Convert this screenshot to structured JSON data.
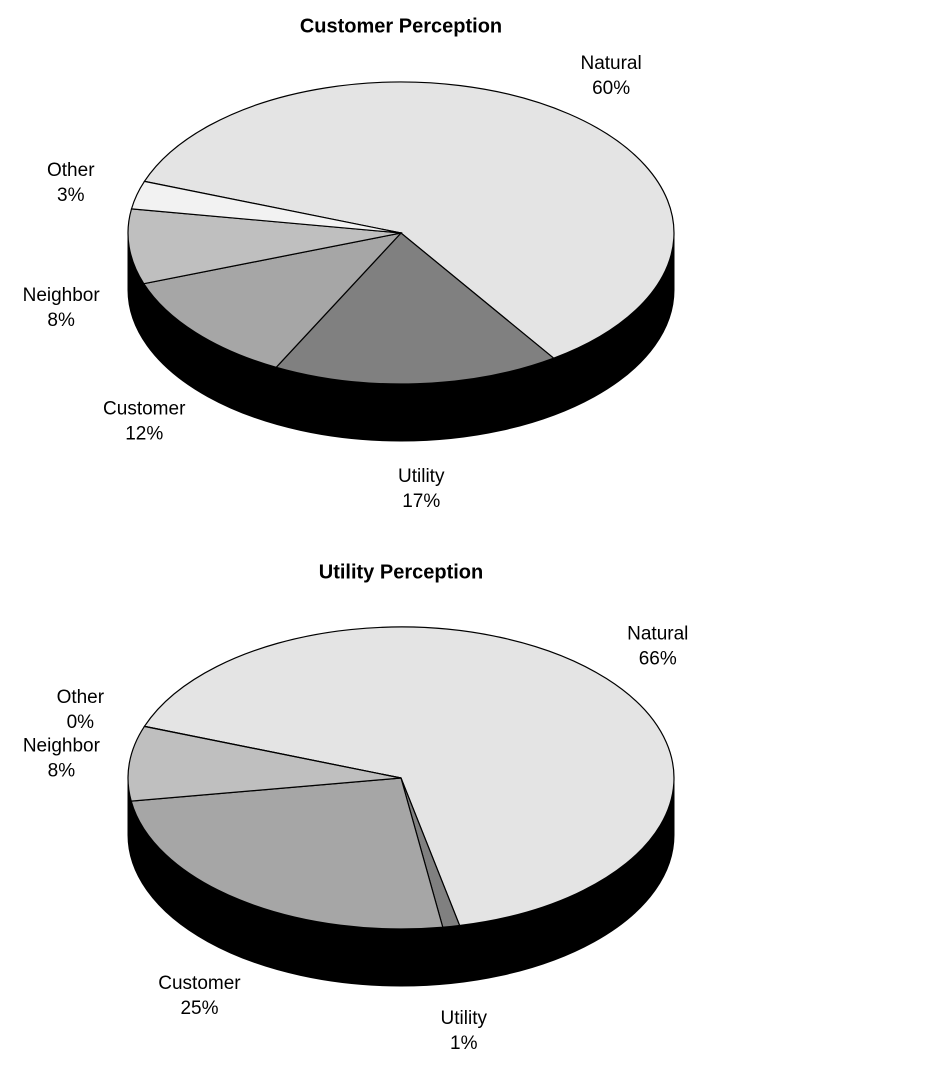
{
  "chart_data": [
    {
      "type": "pie",
      "title": "Customer Perception",
      "categories": [
        "Natural",
        "Utility",
        "Customer",
        "Neighbor",
        "Other"
      ],
      "values": [
        60,
        17,
        12,
        8,
        3
      ],
      "value_labels": [
        "60%",
        "17%",
        "12%",
        "8%",
        "3%"
      ],
      "colors": [
        "#e4e4e4",
        "#808080",
        "#a6a6a6",
        "#bfbfbf",
        "#f2f2f2"
      ]
    },
    {
      "type": "pie",
      "title": "Utility Perception",
      "categories": [
        "Natural",
        "Utility",
        "Customer",
        "Neighbor",
        "Other"
      ],
      "values": [
        66,
        1,
        25,
        8,
        0
      ],
      "value_labels": [
        "66%",
        "1%",
        "25%",
        "8%",
        "0%"
      ],
      "colors": [
        "#e4e4e4",
        "#808080",
        "#a6a6a6",
        "#bfbfbf",
        "#f2f2f2"
      ]
    }
  ]
}
